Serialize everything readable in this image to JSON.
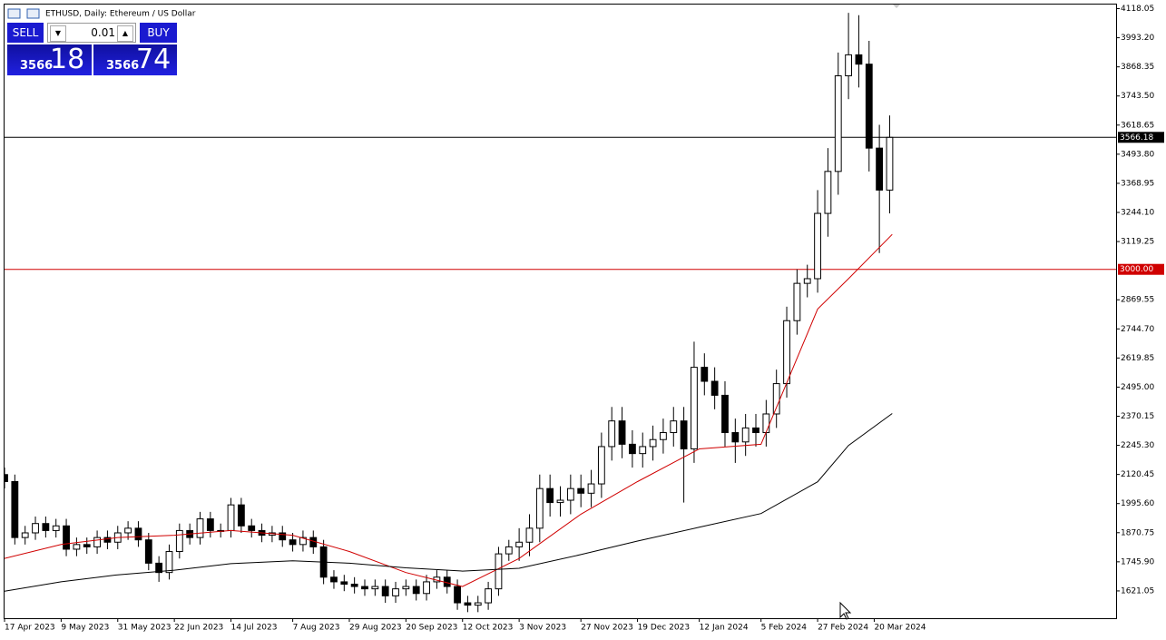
{
  "chart_data": {
    "type": "candlestick",
    "title": "ETHUSD, Daily:  Ethereum / US Dollar",
    "x": [
      "2023-04-17",
      "2023-04-21",
      "2023-04-25",
      "2023-04-29",
      "2023-05-03",
      "2023-05-07",
      "2023-05-11",
      "2023-05-15",
      "2023-05-19",
      "2023-05-23",
      "2023-05-27",
      "2023-05-31",
      "2023-06-04",
      "2023-06-08",
      "2023-06-12",
      "2023-06-16",
      "2023-06-20",
      "2023-06-24",
      "2023-06-28",
      "2023-07-02",
      "2023-07-06",
      "2023-07-10",
      "2023-07-14",
      "2023-07-18",
      "2023-07-22",
      "2023-07-26",
      "2023-07-30",
      "2023-08-03",
      "2023-08-07",
      "2023-08-11",
      "2023-08-15",
      "2023-08-19",
      "2023-08-23",
      "2023-08-27",
      "2023-08-31",
      "2023-09-04",
      "2023-09-08",
      "2023-09-12",
      "2023-09-16",
      "2023-09-20",
      "2023-09-24",
      "2023-09-28",
      "2023-10-02",
      "2023-10-06",
      "2023-10-10",
      "2023-10-14",
      "2023-10-18",
      "2023-10-22",
      "2023-10-26",
      "2023-10-30",
      "2023-11-03",
      "2023-11-07",
      "2023-11-11",
      "2023-11-15",
      "2023-11-19",
      "2023-11-23",
      "2023-11-27",
      "2023-12-01",
      "2023-12-05",
      "2023-12-09",
      "2023-12-13",
      "2023-12-17",
      "2023-12-21",
      "2023-12-25",
      "2023-12-29",
      "2024-01-02",
      "2024-01-06",
      "2024-01-10",
      "2024-01-14",
      "2024-01-18",
      "2024-01-22",
      "2024-01-26",
      "2024-01-30",
      "2024-02-03",
      "2024-02-07",
      "2024-02-11",
      "2024-02-15",
      "2024-02-19",
      "2024-02-23",
      "2024-02-27",
      "2024-03-02",
      "2024-03-06",
      "2024-03-10",
      "2024-03-14",
      "2024-03-18",
      "2024-03-22",
      "2024-03-26"
    ],
    "open": [
      2120,
      2090,
      1850,
      1870,
      1910,
      1880,
      1900,
      1800,
      1820,
      1810,
      1850,
      1830,
      1870,
      1890,
      1840,
      1740,
      1700,
      1790,
      1880,
      1850,
      1930,
      1880,
      1880,
      1990,
      1900,
      1880,
      1860,
      1870,
      1840,
      1820,
      1850,
      1810,
      1680,
      1660,
      1650,
      1640,
      1630,
      1640,
      1600,
      1630,
      1640,
      1610,
      1660,
      1680,
      1640,
      1570,
      1560,
      1570,
      1630,
      1780,
      1810,
      1830,
      1890,
      2060,
      2000,
      2010,
      2060,
      2040,
      2080,
      2240,
      2350,
      2250,
      2210,
      2240,
      2270,
      2300,
      2350,
      2230,
      2580,
      2520,
      2460,
      2300,
      2260,
      2320,
      2300,
      2380,
      2510,
      2780,
      2940,
      2960,
      3240,
      3420,
      3830,
      3920,
      3880,
      3520,
      3340
    ],
    "high": [
      2150,
      2120,
      1900,
      1940,
      1940,
      1930,
      1930,
      1850,
      1850,
      1880,
      1880,
      1900,
      1920,
      1920,
      1870,
      1770,
      1820,
      1910,
      1910,
      1960,
      1960,
      1910,
      2020,
      2020,
      1930,
      1910,
      1900,
      1900,
      1870,
      1880,
      1880,
      1840,
      1710,
      1690,
      1680,
      1670,
      1670,
      1670,
      1660,
      1670,
      1670,
      1690,
      1710,
      1710,
      1670,
      1600,
      1600,
      1660,
      1810,
      1840,
      1890,
      1950,
      2120,
      2120,
      2070,
      2120,
      2120,
      2140,
      2300,
      2410,
      2410,
      2310,
      2300,
      2330,
      2360,
      2410,
      2410,
      2690,
      2640,
      2580,
      2520,
      2360,
      2380,
      2380,
      2440,
      2570,
      2840,
      3000,
      3020,
      3340,
      3520,
      3930,
      4100,
      4090,
      3980,
      3620,
      3660
    ],
    "low": [
      2060,
      1820,
      1820,
      1840,
      1850,
      1850,
      1770,
      1770,
      1780,
      1780,
      1800,
      1800,
      1840,
      1810,
      1710,
      1660,
      1670,
      1760,
      1820,
      1820,
      1850,
      1850,
      1850,
      1870,
      1850,
      1830,
      1830,
      1810,
      1790,
      1790,
      1780,
      1650,
      1630,
      1620,
      1610,
      1600,
      1600,
      1570,
      1570,
      1600,
      1580,
      1580,
      1630,
      1610,
      1540,
      1530,
      1530,
      1540,
      1600,
      1750,
      1750,
      1770,
      1830,
      1940,
      1940,
      1950,
      1980,
      1980,
      2020,
      2180,
      2190,
      2150,
      2150,
      2180,
      2210,
      2240,
      2000,
      2170,
      2460,
      2400,
      2240,
      2170,
      2200,
      2240,
      2240,
      2320,
      2450,
      2720,
      2880,
      2900,
      3140,
      3320,
      3730,
      3780,
      3420,
      3070,
      3240
    ],
    "close": [
      2090,
      1850,
      1870,
      1910,
      1880,
      1900,
      1800,
      1820,
      1810,
      1850,
      1830,
      1870,
      1890,
      1840,
      1740,
      1700,
      1790,
      1880,
      1850,
      1930,
      1880,
      1880,
      1990,
      1900,
      1880,
      1860,
      1870,
      1840,
      1820,
      1850,
      1810,
      1680,
      1660,
      1650,
      1640,
      1630,
      1640,
      1600,
      1630,
      1640,
      1610,
      1660,
      1680,
      1640,
      1570,
      1560,
      1570,
      1630,
      1780,
      1810,
      1830,
      1890,
      2060,
      2000,
      2010,
      2060,
      2040,
      2080,
      2240,
      2350,
      2250,
      2210,
      2240,
      2270,
      2300,
      2350,
      2230,
      2580,
      2520,
      2460,
      2300,
      2260,
      2320,
      2300,
      2380,
      2510,
      2780,
      2940,
      2960,
      3240,
      3420,
      3830,
      3920,
      3880,
      3520,
      3340,
      3566
    ],
    "up_color": "#ffffff",
    "down_color": "#000000",
    "outline_color": "#000000",
    "lines": [
      {
        "color": "#d00000",
        "x": [
          "2023-04-17",
          "2023-05-09",
          "2023-05-31",
          "2023-06-22",
          "2023-07-14",
          "2023-08-07",
          "2023-08-29",
          "2023-09-20",
          "2023-10-12",
          "2023-11-03",
          "2023-11-27",
          "2023-12-19",
          "2024-01-12",
          "2024-02-05",
          "2024-02-27",
          "2024-03-10",
          "2024-03-27"
        ],
        "values": [
          1760,
          1820,
          1850,
          1860,
          1880,
          1860,
          1790,
          1700,
          1640,
          1760,
          1950,
          2090,
          2230,
          2250,
          2830,
          2960,
          3150
        ]
      },
      {
        "color": "#000000",
        "x": [
          "2023-04-17",
          "2023-05-09",
          "2023-05-31",
          "2023-06-22",
          "2023-07-14",
          "2023-08-07",
          "2023-08-29",
          "2023-09-20",
          "2023-10-12",
          "2023-11-03",
          "2023-11-27",
          "2023-12-19",
          "2024-01-12",
          "2024-02-05",
          "2024-02-27",
          "2024-03-10",
          "2024-03-27"
        ],
        "values": [
          1620,
          1660,
          1690,
          1710,
          1738,
          1750,
          1740,
          1720,
          1706,
          1718,
          1777,
          1835,
          1894,
          1953,
          2089,
          2245,
          2382
        ]
      }
    ],
    "price_lines": [
      {
        "value": 3566.18,
        "label": "3566.18",
        "color": "#000000"
      },
      {
        "value": 3000,
        "label": "3000.00",
        "color": "#d00000"
      }
    ],
    "xlim": [
      "2023-04-17",
      "2024-06-22"
    ],
    "ylim": [
      1504,
      4137.6
    ],
    "yticks": [
      4118.05,
      {
        "value": 3993.2,
        "label": "3993.20"
      },
      3868.35,
      {
        "value": 3743.5,
        "label": "3743.50"
      },
      3618.65,
      {
        "value": 3493.8,
        "label": "3493.80"
      },
      3368.95,
      {
        "value": 3244.1,
        "label": "3244.10"
      },
      3119.25,
      2869.55,
      {
        "value": 2744.7,
        "label": "2744.70"
      },
      2619.85,
      {
        "value": 2495,
        "label": "2495.00"
      },
      2370.15,
      {
        "value": 2245.3,
        "label": "2245.30"
      },
      2120.45,
      {
        "value": 1995.6,
        "label": "1995.60"
      },
      1870.75,
      {
        "value": 1745.9,
        "label": "1745.90"
      },
      1621.05
    ],
    "xticks": [
      {
        "value": "2023-04-17",
        "label": "17 Apr 2023"
      },
      {
        "value": "2023-05-09",
        "label": "9 May 2023"
      },
      {
        "value": "2023-05-31",
        "label": "31 May 2023"
      },
      {
        "value": "2023-06-22",
        "label": "22 Jun 2023"
      },
      {
        "value": "2023-07-14",
        "label": "14 Jul 2023"
      },
      {
        "value": "2023-08-07",
        "label": "7 Aug 2023"
      },
      {
        "value": "2023-08-29",
        "label": "29 Aug 2023"
      },
      {
        "value": "2023-09-20",
        "label": "20 Sep 2023"
      },
      {
        "value": "2023-10-12",
        "label": "12 Oct 2023"
      },
      {
        "value": "2023-11-03",
        "label": "3 Nov 2023"
      },
      {
        "value": "2023-11-27",
        "label": "27 Nov 2023"
      },
      {
        "value": "2023-12-19",
        "label": "19 Dec 2023"
      },
      {
        "value": "2024-01-12",
        "label": "12 Jan 2024"
      },
      {
        "value": "2024-02-05",
        "label": "5 Feb 2024"
      },
      {
        "value": "2024-02-27",
        "label": "27 Feb 2024"
      },
      {
        "value": "2024-03-20",
        "label": "20 Mar 2024"
      }
    ],
    "grid": false
  },
  "trade_panel": {
    "sell_label": "SELL",
    "buy_label": "BUY",
    "lot": "0.01",
    "sell_price_main": "3566",
    "sell_price_pips": "18",
    "buy_price_main": "3566",
    "buy_price_pips": "74"
  }
}
